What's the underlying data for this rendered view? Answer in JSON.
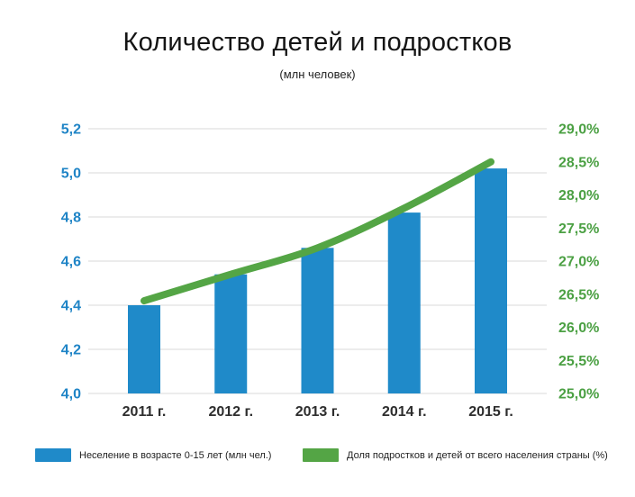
{
  "chart_data": {
    "type": "combo-bar-line",
    "title": "Количество детей и подростков",
    "subtitle": "(млн человек)",
    "categories": [
      "2011 г.",
      "2012 г.",
      "2013 г.",
      "2014 г.",
      "2015 г."
    ],
    "series": [
      {
        "name": "Неселение в возрасте 0-15 лет (млн чел.)",
        "type": "bar",
        "axis": "left",
        "color": "#1f8ac9",
        "values": [
          4.4,
          4.54,
          4.66,
          4.82,
          5.02
        ]
      },
      {
        "name": "Доля подростков и детей от всего населения страны (%)",
        "type": "line",
        "axis": "right",
        "color": "#54a545",
        "values": [
          26.4,
          26.8,
          27.2,
          27.8,
          28.5
        ]
      }
    ],
    "left_axis": {
      "min": 4.0,
      "max": 5.2,
      "tick_labels": [
        "5,2",
        "5,0",
        "4,8",
        "4,6",
        "4,4",
        "4,2",
        "4,0"
      ],
      "color": "#1f84c6"
    },
    "right_axis": {
      "min": 25.0,
      "max": 29.0,
      "tick_labels": [
        "29,0%",
        "28,5%",
        "28,0%",
        "27,5%",
        "27,0%",
        "26,5%",
        "26,0%",
        "25,5%",
        "25,0%"
      ],
      "color": "#4ba043"
    },
    "grid": true,
    "grid_color": "#d8d8d8",
    "x_label_color": "#2d2d2d",
    "legend_position": "bottom"
  }
}
